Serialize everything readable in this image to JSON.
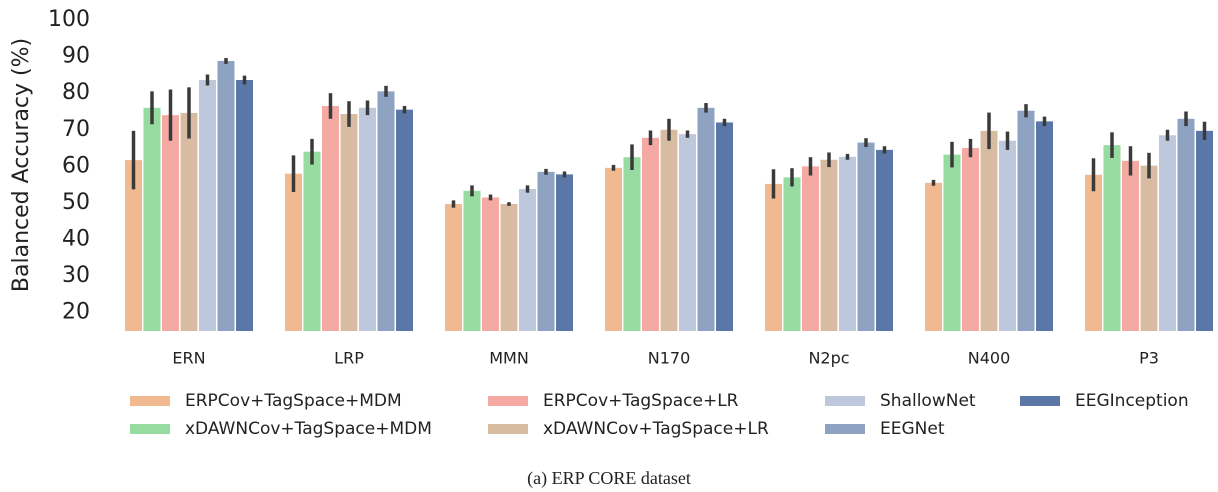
{
  "chart_data": {
    "type": "bar",
    "ylabel": "Balanced Accuracy (%)",
    "caption": "(a)  ERP CORE dataset",
    "categories": [
      "ERN",
      "LRP",
      "MMN",
      "N170",
      "N2pc",
      "N400",
      "P3"
    ],
    "ylim": [
      15,
      100
    ],
    "yticks": [
      20,
      30,
      40,
      50,
      60,
      70,
      80,
      90,
      100
    ],
    "grid": false,
    "legend": "bottom",
    "series": [
      {
        "name": "ERPCov+TagSpace+MDM",
        "color": "#f0b990",
        "values": [
          61.7,
          58,
          49.7,
          59.6,
          55.2,
          55.5,
          57.7
        ],
        "errors": [
          8,
          5,
          1,
          0.8,
          4,
          0.8,
          4.5
        ]
      },
      {
        "name": "xDAWNCov+TagSpace+MDM",
        "color": "#96dba0",
        "values": [
          76,
          64,
          53.3,
          62.5,
          57,
          63.2,
          65.8
        ],
        "errors": [
          4.5,
          3.5,
          1.5,
          3.5,
          2.5,
          3.5,
          3.5
        ]
      },
      {
        "name": "ERPCov+TagSpace+LR",
        "color": "#f4a9a3",
        "values": [
          74,
          76.5,
          51.5,
          67.8,
          60,
          65,
          61.5
        ],
        "errors": [
          7,
          3.5,
          0.8,
          2,
          2.5,
          2.5,
          4
        ]
      },
      {
        "name": "xDAWNCov+TagSpace+LR",
        "color": "#d8bca2",
        "values": [
          74.6,
          74.3,
          49.7,
          70,
          61.8,
          69.7,
          60.2
        ],
        "errors": [
          7,
          3.5,
          0.5,
          3,
          2,
          5,
          3.5
        ]
      },
      {
        "name": "ShallowNet",
        "color": "#bec8dd",
        "values": [
          83.6,
          76,
          53.8,
          68.8,
          62.6,
          67,
          68.5
        ],
        "errors": [
          1.5,
          2,
          1,
          1,
          0.8,
          2.5,
          1.5
        ]
      },
      {
        "name": "EEGNet",
        "color": "#8ea3c2",
        "values": [
          88.8,
          80.5,
          58.5,
          76,
          66.5,
          75.2,
          73
        ],
        "errors": [
          0.8,
          1.5,
          0.8,
          1.3,
          1.2,
          1.8,
          2
        ]
      },
      {
        "name": "EEGInception",
        "color": "#5a77a8",
        "values": [
          83.6,
          75.5,
          57.8,
          72,
          64.5,
          72.3,
          69.7
        ],
        "errors": [
          1.2,
          1,
          0.8,
          1,
          1,
          1.3,
          2.5
        ]
      }
    ]
  }
}
